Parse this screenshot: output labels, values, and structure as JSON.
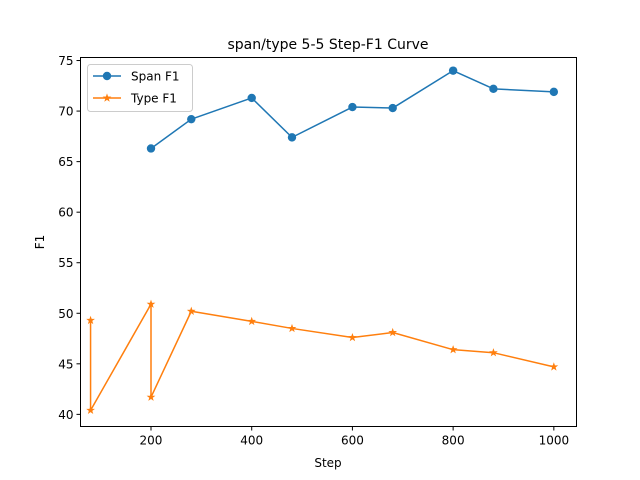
{
  "chart_data": {
    "type": "line",
    "title": "span/type 5-5 Step-F1 Curve",
    "xlabel": "Step",
    "ylabel": "F1",
    "xlim": [
      60,
      1045
    ],
    "ylim": [
      38.8,
      75.3
    ],
    "xticks": [
      200,
      400,
      600,
      800,
      1000
    ],
    "yticks": [
      40,
      45,
      50,
      55,
      60,
      65,
      70,
      75
    ],
    "grid": false,
    "legend": "top-left",
    "series": [
      {
        "name": "Span F1",
        "color": "#1f77b4",
        "marker": "circle",
        "points": [
          {
            "x": 200,
            "y": 66.3
          },
          {
            "x": 280,
            "y": 69.2
          },
          {
            "x": 400,
            "y": 71.3
          },
          {
            "x": 480,
            "y": 67.4
          },
          {
            "x": 600,
            "y": 70.4
          },
          {
            "x": 680,
            "y": 70.3
          },
          {
            "x": 800,
            "y": 74.0
          },
          {
            "x": 880,
            "y": 72.2
          },
          {
            "x": 1000,
            "y": 71.9
          }
        ]
      },
      {
        "name": "Type F1",
        "color": "#ff7f0e",
        "marker": "star",
        "points": [
          {
            "x": 80,
            "y": 49.3
          },
          {
            "x": 80,
            "y": 40.4
          },
          {
            "x": 200,
            "y": 50.9
          },
          {
            "x": 200,
            "y": 41.7
          },
          {
            "x": 280,
            "y": 50.2
          },
          {
            "x": 400,
            "y": 49.2
          },
          {
            "x": 480,
            "y": 48.5
          },
          {
            "x": 600,
            "y": 47.6
          },
          {
            "x": 680,
            "y": 48.1
          },
          {
            "x": 800,
            "y": 46.4
          },
          {
            "x": 880,
            "y": 46.1
          },
          {
            "x": 1000,
            "y": 44.7
          }
        ]
      }
    ]
  }
}
